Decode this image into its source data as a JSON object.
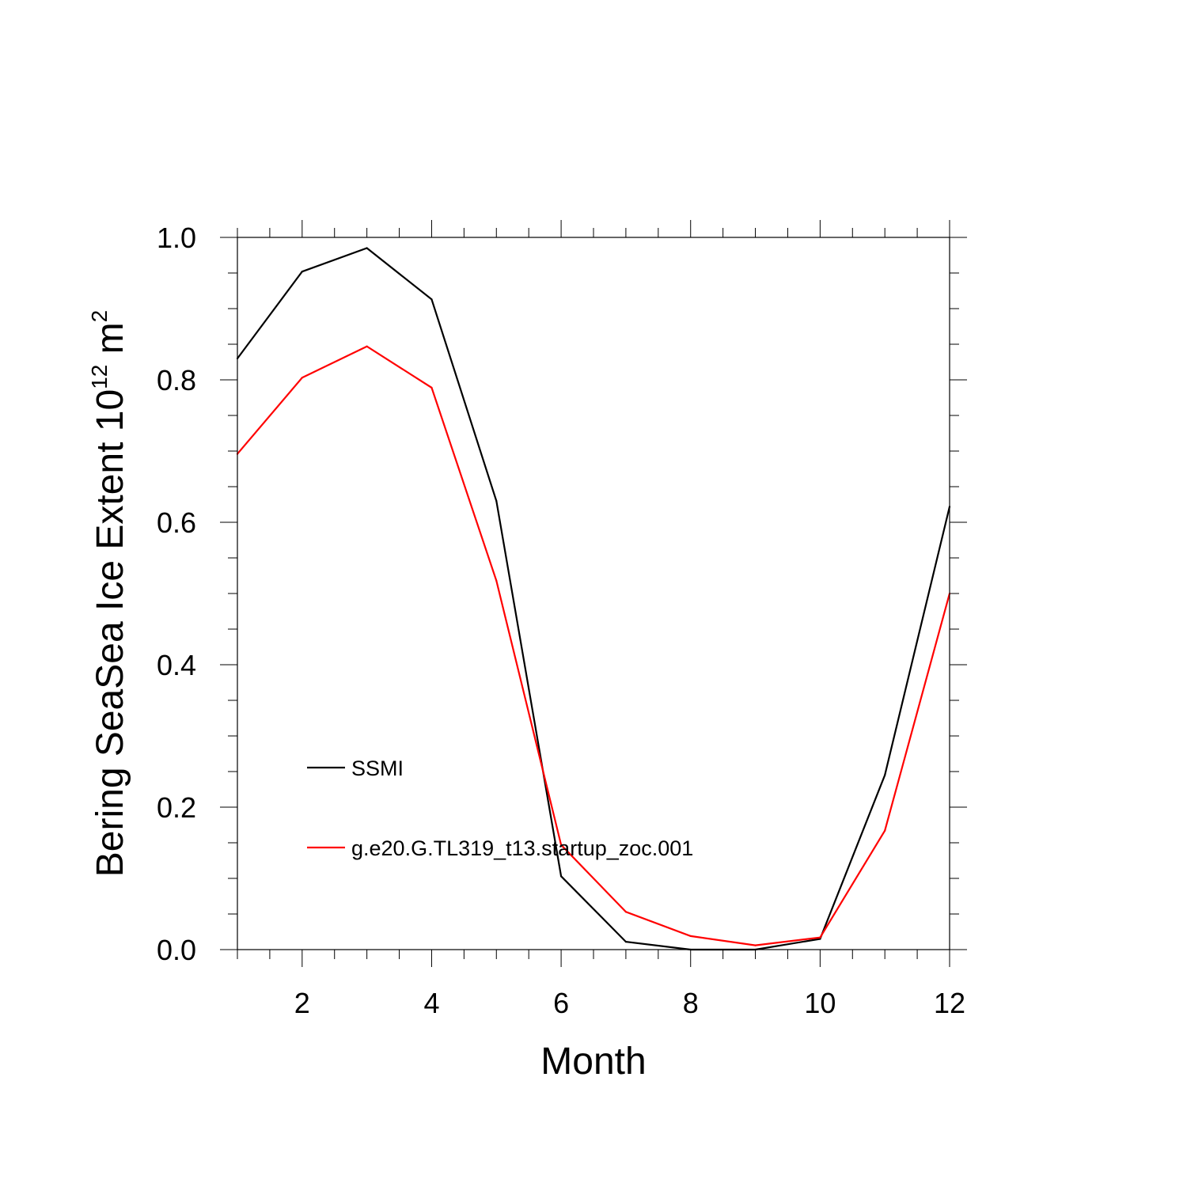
{
  "chart_data": {
    "type": "line",
    "title": "",
    "xlabel": "Month",
    "ylabel": {
      "prefix": "Bering SeaSea Ice Extent 10",
      "exponent": "12",
      "unit": " m",
      "unit_exponent": "2"
    },
    "xlim": [
      1,
      12
    ],
    "ylim": [
      0.0,
      1.0
    ],
    "x_ticks": [
      2,
      4,
      6,
      8,
      10,
      12
    ],
    "x_tick_labels": [
      "2",
      "4",
      "6",
      "8",
      "10",
      "12"
    ],
    "y_ticks": [
      0.0,
      0.2,
      0.4,
      0.6,
      0.8,
      1.0
    ],
    "y_tick_labels": [
      "0.0",
      "0.2",
      "0.4",
      "0.6",
      "0.8",
      "1.0"
    ],
    "grid": false,
    "legend_position": "lower-left inside",
    "x": [
      1,
      2,
      3,
      4,
      5,
      6,
      7,
      8,
      9,
      10,
      11,
      12
    ],
    "series": [
      {
        "name": "SSMI",
        "color": "#000000",
        "values": [
          0.83,
          0.952,
          0.985,
          0.913,
          0.63,
          0.103,
          0.011,
          0.0,
          0.0,
          0.015,
          0.245,
          0.622
        ]
      },
      {
        "name": "g.e20.G.TL319_t13.startup_zoc.001",
        "color": "#ff0000",
        "values": [
          0.696,
          0.803,
          0.847,
          0.789,
          0.518,
          0.147,
          0.053,
          0.019,
          0.006,
          0.017,
          0.167,
          0.5
        ]
      }
    ]
  }
}
